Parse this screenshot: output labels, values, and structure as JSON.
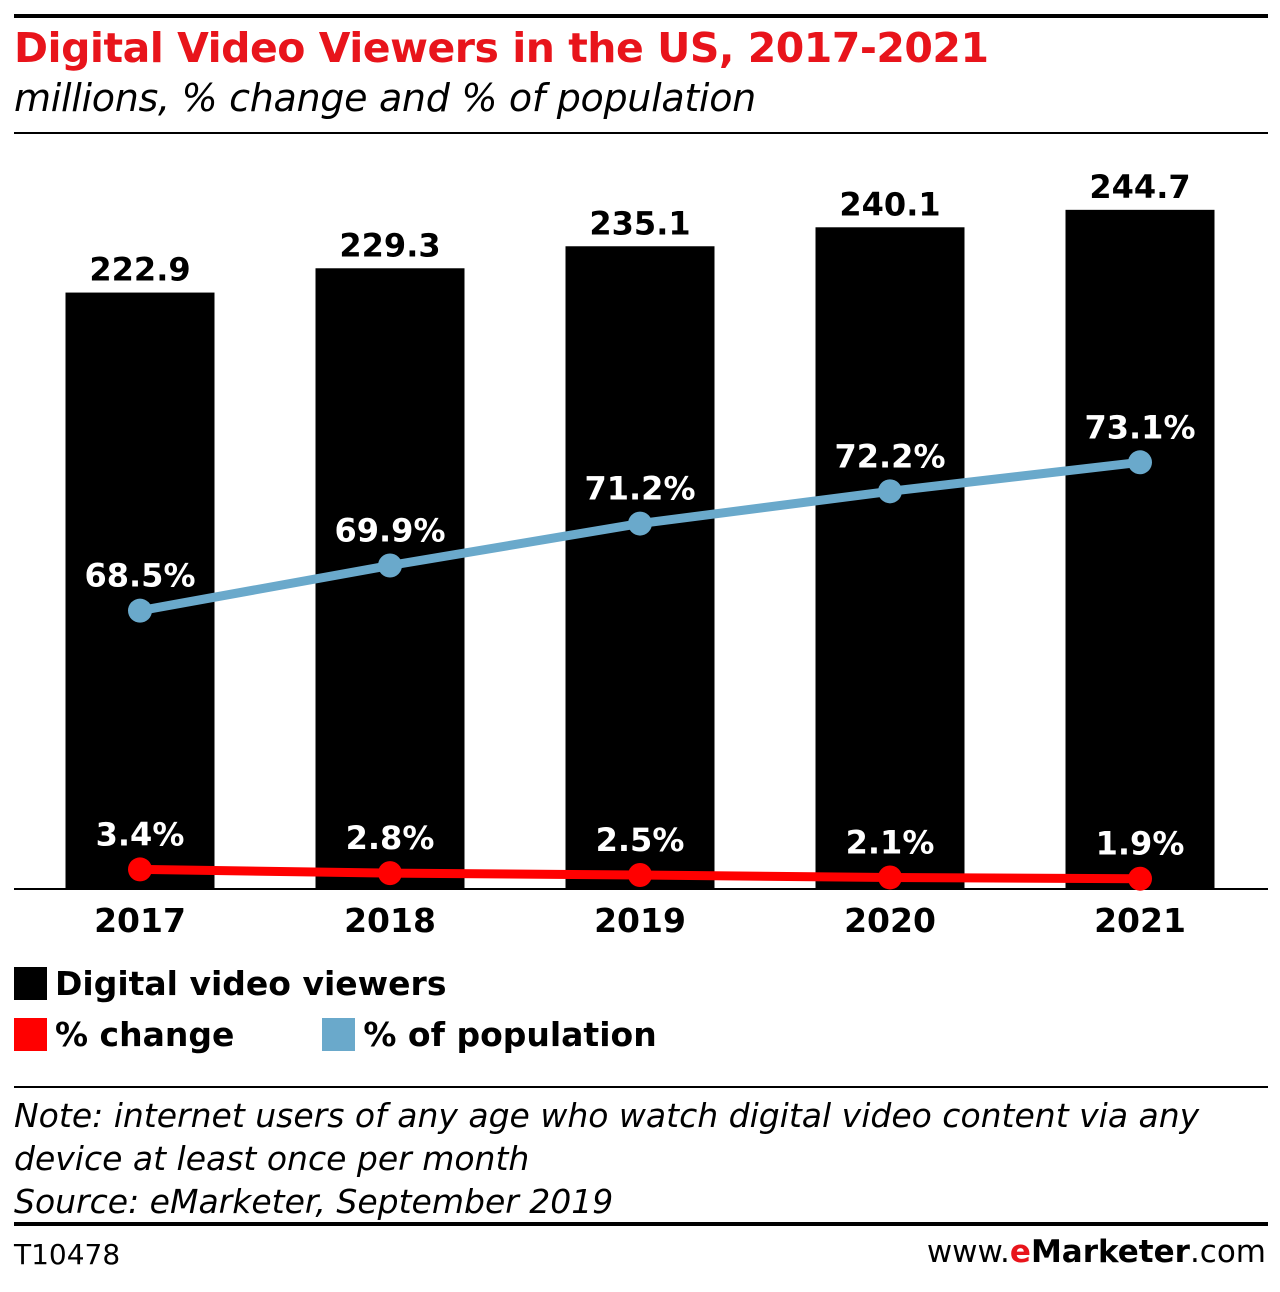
{
  "header": {
    "title": "Digital Video Viewers in the US, 2017-2021",
    "subtitle": "millions, % change and % of population"
  },
  "chart_data": {
    "type": "bar",
    "categories": [
      "2017",
      "2018",
      "2019",
      "2020",
      "2021"
    ],
    "series": [
      {
        "name": "Digital video viewers",
        "kind": "bar",
        "color": "#000000",
        "values": [
          222.9,
          229.3,
          235.1,
          240.1,
          244.7
        ],
        "labels": [
          "222.9",
          "229.3",
          "235.1",
          "240.1",
          "244.7"
        ]
      },
      {
        "name": "% change",
        "kind": "line",
        "color": "#ff0000",
        "values": [
          3.4,
          2.8,
          2.5,
          2.1,
          1.9
        ],
        "labels": [
          "3.4%",
          "2.8%",
          "2.5%",
          "2.1%",
          "1.9%"
        ]
      },
      {
        "name": "% of population",
        "kind": "line",
        "color": "#6aa9cb",
        "values": [
          68.5,
          69.9,
          71.2,
          72.2,
          73.1
        ],
        "labels": [
          "68.5%",
          "69.9%",
          "71.2%",
          "72.2%",
          "73.1%"
        ]
      }
    ],
    "grid": false,
    "legend_placement": "bottom"
  },
  "legend": {
    "viewers_label": "Digital video viewers",
    "change_label": "% change",
    "population_label": "% of population"
  },
  "footer": {
    "note_line1": "Note: internet users of any age who watch digital video content via any",
    "note_line2": "device at least once per month",
    "source": "Source: eMarketer, September 2019",
    "chart_id": "T10478",
    "brand_prefix": "www.",
    "brand_e": "e",
    "brand_main": "Marketer",
    "brand_suffix": ".com"
  }
}
